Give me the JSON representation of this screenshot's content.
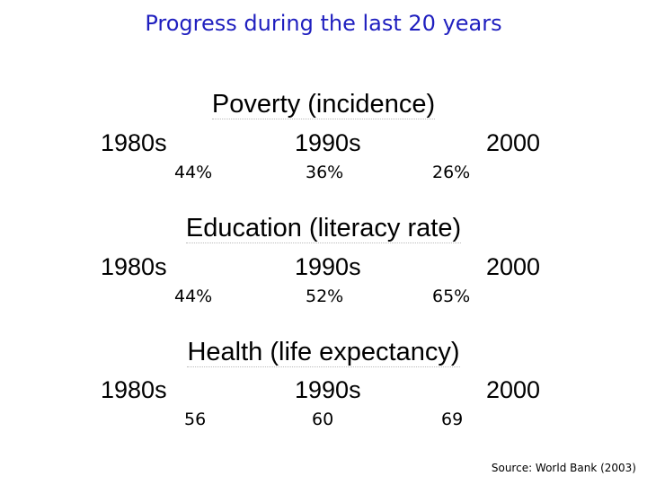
{
  "title": "Progress during the last 20 years",
  "accent_color": "#1f1fbf",
  "sections": [
    {
      "heading": "Poverty (incidence)",
      "periods": [
        "1980s",
        "1990s",
        "2000"
      ],
      "values": [
        "44%",
        "36%",
        "26%"
      ]
    },
    {
      "heading": "Education (literacy rate)",
      "periods": [
        "1980s",
        "1990s",
        "2000"
      ],
      "values": [
        "44%",
        "52%",
        "65%"
      ]
    },
    {
      "heading": "Health (life expectancy)",
      "periods": [
        "1980s",
        "1990s",
        "2000"
      ],
      "values": [
        "56",
        "60",
        "69"
      ]
    }
  ],
  "source": "Source: World Bank (2003)"
}
